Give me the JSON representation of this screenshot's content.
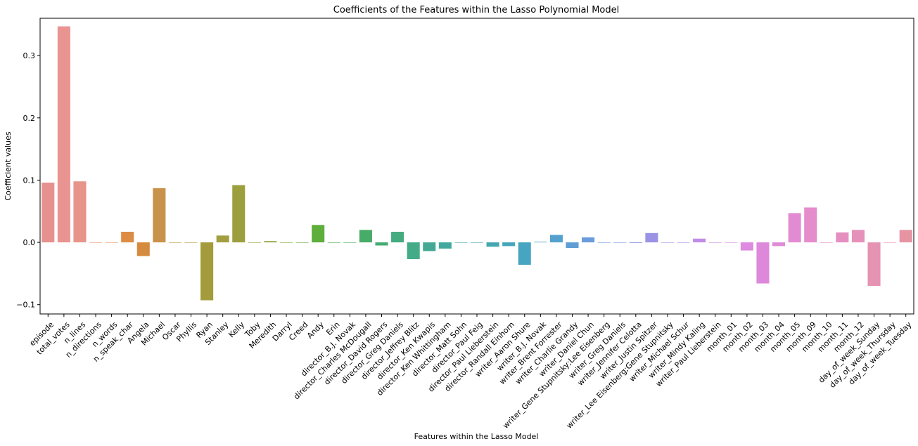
{
  "chart_data": {
    "type": "bar",
    "title": "Coefficients of the Features within the Lasso Polynomial Model",
    "xlabel": "Features within the Lasso Model",
    "ylabel": "Coefficient values",
    "ylim": [
      -0.115,
      0.36
    ],
    "yticks": [
      -0.1,
      0.0,
      0.1,
      0.2,
      0.3
    ],
    "ytick_labels": [
      "−0.1",
      "0.0",
      "0.1",
      "0.2",
      "0.3"
    ],
    "grid": false,
    "legend": "none",
    "categories": [
      "episode",
      "total_votes",
      "n_lines",
      "n_directions",
      "n_words",
      "n_speak_char",
      "Angela",
      "Michael",
      "Oscar",
      "Phyllis",
      "Ryan",
      "Stanley",
      "Kelly",
      "Toby",
      "Meredith",
      "Darryl",
      "Creed",
      "Andy",
      "Erin",
      "director_B.J. Novak",
      "director_Charles McDougall",
      "director_David Rogers",
      "director_Greg Daniels",
      "director_Jeffrey Blitz",
      "director_Ken Kwapis",
      "director_Ken Whittingham",
      "director_Matt Sohn",
      "director_Paul Feig",
      "director_Paul Lieberstein",
      "director_Randall Einhorn",
      "writer_Aaron Shure",
      "writer_B.J. Novak",
      "writer_Brent Forrester",
      "writer_Charlie Grandy",
      "writer_Daniel Chun",
      "writer_Gene Stupnitsky;Lee Eisenberg",
      "writer_Greg Daniels",
      "writer_Jennifer Celotta",
      "writer_Justin Spitzer",
      "writer_Lee Eisenberg;Gene Stupnitsky",
      "writer_Michael Schur",
      "writer_Mindy Kaling",
      "writer_Paul Lieberstein",
      "month_01",
      "month_02",
      "month_03",
      "month_04",
      "month_05",
      "month_09",
      "month_10",
      "month_11",
      "month_12",
      "day_of_week_Sunday",
      "day_of_week_Thursday",
      "day_of_week_Tuesday"
    ],
    "values": [
      0.096,
      0.347,
      0.098,
      0,
      0,
      0.017,
      -0.022,
      0.087,
      0,
      0,
      -0.093,
      0.011,
      0.092,
      0,
      0.002,
      0,
      0,
      0.028,
      0,
      0,
      0.02,
      -0.005,
      0.017,
      -0.027,
      -0.014,
      -0.01,
      0,
      0,
      -0.007,
      -0.006,
      -0.036,
      0.001,
      0.012,
      -0.009,
      0.008,
      0,
      0,
      -0.001,
      0.015,
      0,
      0,
      0.006,
      0,
      0,
      -0.013,
      -0.066,
      -0.006,
      0.047,
      0.056,
      0,
      0.016,
      0.02,
      -0.07,
      0,
      0.02
    ],
    "colors": [
      "#e6908f",
      "#ea9491",
      "#e7948a",
      "#e99674",
      "#e7955e",
      "#dd8c46",
      "#d48b3f",
      "#c9924a",
      "#bd963f",
      "#b29c3f",
      "#a49b3c",
      "#a39f41",
      "#9c9f3d",
      "#95a23d",
      "#8ba33c",
      "#7eab3e",
      "#6cab3a",
      "#5eae3b",
      "#4fac48",
      "#4aad5d",
      "#47ac67",
      "#43ac74",
      "#45ab80",
      "#44ab89",
      "#44a994",
      "#42a99c",
      "#42a7a2",
      "#44a6ab",
      "#43a7b1",
      "#46a6b9",
      "#48a5c2",
      "#4da3c9",
      "#54a1d0",
      "#5f9dd5",
      "#6a9bdd",
      "#7598e0",
      "#8096e3",
      "#8c95e6",
      "#9a93e5",
      "#a890e6",
      "#b48ee6",
      "#c08ce5",
      "#cc8be4",
      "#d68be2",
      "#dd8ae0",
      "#de88dc",
      "#e08ad8",
      "#e38bd2",
      "#e58ccc",
      "#e48dc6",
      "#e58fc0",
      "#e691b9",
      "#e692b2",
      "#e794ab",
      "#e693a2"
    ]
  }
}
